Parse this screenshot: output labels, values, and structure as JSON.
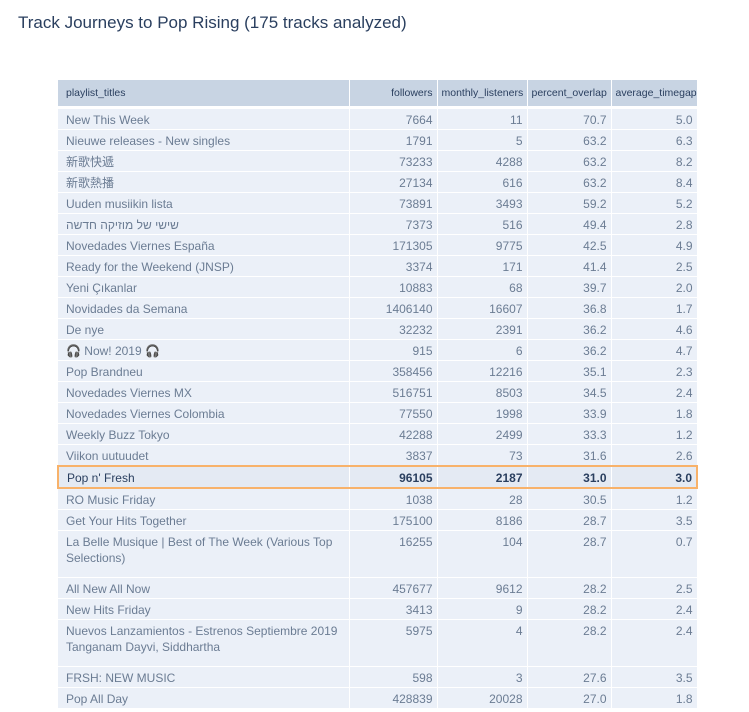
{
  "title": "Track Journeys to Pop Rising (175 tracks analyzed)",
  "highlight_color": "#f8b26a",
  "table": {
    "columns": [
      "playlist_titles",
      "followers",
      "monthly_listeners",
      "percent_overlap",
      "average_timegap"
    ],
    "highlighted_row": "Pop n' Fresh",
    "rows": [
      [
        "New This Week",
        "7664",
        "11",
        "70.7",
        "5.0"
      ],
      [
        "Nieuwe releases - New singles",
        "1791",
        "5",
        "63.2",
        "6.3"
      ],
      [
        "新歌快遞",
        "73233",
        "4288",
        "63.2",
        "8.2"
      ],
      [
        "新歌熱播",
        "27134",
        "616",
        "63.2",
        "8.4"
      ],
      [
        "Uuden musiikin lista",
        "73891",
        "3493",
        "59.2",
        "5.2"
      ],
      [
        "שישי של מוזיקה חדשה",
        "7373",
        "516",
        "49.4",
        "2.8"
      ],
      [
        "Novedades Viernes España",
        "171305",
        "9775",
        "42.5",
        "4.9"
      ],
      [
        "Ready for the Weekend (JNSP)",
        "3374",
        "171",
        "41.4",
        "2.5"
      ],
      [
        "Yeni Çıkanlar",
        "10883",
        "68",
        "39.7",
        "2.0"
      ],
      [
        "Novidades da Semana",
        "1406140",
        "16607",
        "36.8",
        "1.7"
      ],
      [
        "De nye",
        "32232",
        "2391",
        "36.2",
        "4.6"
      ],
      [
        "🎧 Now! 2019 🎧",
        "915",
        "6",
        "36.2",
        "4.7"
      ],
      [
        "Pop Brandneu",
        "358456",
        "12216",
        "35.1",
        "2.3"
      ],
      [
        "Novedades Viernes MX",
        "516751",
        "8503",
        "34.5",
        "2.4"
      ],
      [
        "Novedades Viernes Colombia",
        "77550",
        "1998",
        "33.9",
        "1.8"
      ],
      [
        "Weekly Buzz Tokyo",
        "42288",
        "2499",
        "33.3",
        "1.2"
      ],
      [
        "Viikon uutuudet",
        "3837",
        "73",
        "31.6",
        "2.6"
      ],
      [
        "Pop n' Fresh",
        "96105",
        "2187",
        "31.0",
        "3.0"
      ],
      [
        "RO Music Friday",
        "1038",
        "28",
        "30.5",
        "1.2"
      ],
      [
        "Get Your Hits Together",
        "175100",
        "8186",
        "28.7",
        "3.5"
      ],
      [
        "La Belle Musique | Best of The Week (Various Top Selections)",
        "16255",
        "104",
        "28.7",
        "0.7"
      ],
      [
        "All New All Now",
        "457677",
        "9612",
        "28.2",
        "2.5"
      ],
      [
        "New Hits Friday",
        "3413",
        "9",
        "28.2",
        "2.4"
      ],
      [
        "Nuevos Lanzamientos - Estrenos Septiembre 2019 Tanganam Dayvi, Siddhartha",
        "5975",
        "4",
        "28.2",
        "2.4"
      ],
      [
        "FRSH: NEW MUSIC",
        "598",
        "3",
        "27.6",
        "3.5"
      ],
      [
        "Pop All Day",
        "428839",
        "20028",
        "27.0",
        "1.8"
      ]
    ]
  }
}
